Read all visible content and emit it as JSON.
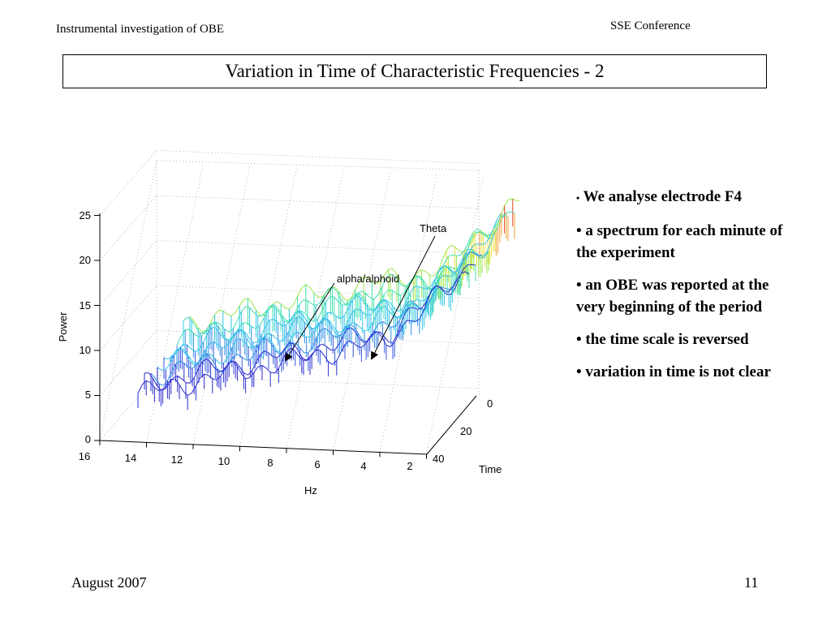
{
  "header": {
    "left": "Instrumental investigation of OBE",
    "right": "SSE Conference"
  },
  "slide": {
    "title": "Variation in Time of Characteristic Frequencies - 2"
  },
  "plot": {
    "type": "surface",
    "zlabel": "Power",
    "xlabel": "Hz",
    "ylabel": "Time",
    "z_ticks": [
      "0",
      "5",
      "10",
      "15",
      "20",
      "25"
    ],
    "hz_ticks": [
      "16",
      "14",
      "12",
      "10",
      "8",
      "6",
      "4",
      "2"
    ],
    "time_ticks": [
      "0",
      "20",
      "40"
    ],
    "annotations": {
      "theta": "Theta",
      "alpha": "alpha/alphoid"
    }
  },
  "bullets": [
    "We analyse electrode F4",
    "a spectrum for each minute of the experiment",
    "an OBE was reported at the very beginning of the period",
    "the time scale is reversed",
    "variation in time is not clear"
  ],
  "footer": {
    "date": "August 2007",
    "page": "11"
  }
}
